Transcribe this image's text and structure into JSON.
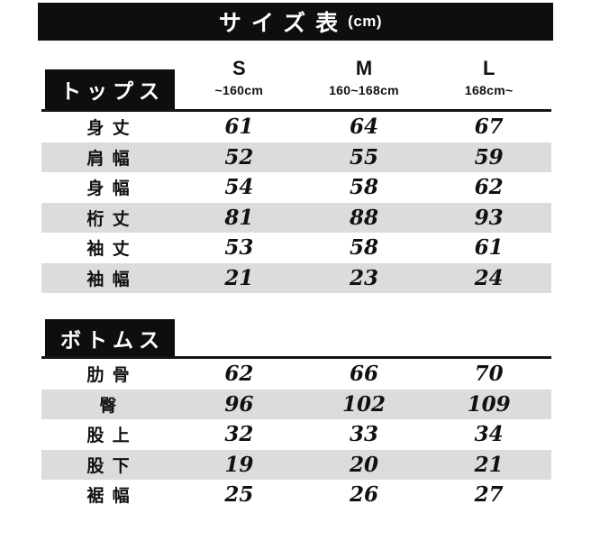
{
  "title": {
    "text": "サイズ表",
    "unit": "(cm)"
  },
  "columns": [
    {
      "size": "S",
      "range": "~160cm"
    },
    {
      "size": "M",
      "range": "160~168cm"
    },
    {
      "size": "L",
      "range": "168cm~"
    }
  ],
  "sections": [
    {
      "label": "トップス",
      "rows": [
        {
          "label": "身 丈",
          "values": [
            "61",
            "64",
            "67"
          ]
        },
        {
          "label": "肩 幅",
          "values": [
            "52",
            "55",
            "59"
          ]
        },
        {
          "label": "身 幅",
          "values": [
            "54",
            "58",
            "62"
          ]
        },
        {
          "label": "桁 丈",
          "values": [
            "81",
            "88",
            "93"
          ]
        },
        {
          "label": "袖 丈",
          "values": [
            "53",
            "58",
            "61"
          ]
        },
        {
          "label": "袖 幅",
          "values": [
            "21",
            "23",
            "24"
          ]
        }
      ]
    },
    {
      "label": "ボトムス",
      "rows": [
        {
          "label": "肋 骨",
          "values": [
            "62",
            "66",
            "70"
          ]
        },
        {
          "label": "臀",
          "values": [
            "96",
            "102",
            "109"
          ]
        },
        {
          "label": "股 上",
          "values": [
            "32",
            "33",
            "34"
          ]
        },
        {
          "label": "股 下",
          "values": [
            "19",
            "20",
            "21"
          ]
        },
        {
          "label": "裾 幅",
          "values": [
            "25",
            "26",
            "27"
          ]
        }
      ]
    }
  ],
  "colors": {
    "bar_black": "#0e0e0e",
    "row_alt_gray": "#dcdcdc",
    "text_black": "#111111"
  },
  "chart_data": {
    "type": "table",
    "title": "サイズ表 (cm)",
    "categories": [
      "S (~160cm)",
      "M (160~168cm)",
      "L (168cm~)"
    ],
    "sections": [
      {
        "name": "トップス",
        "series": [
          {
            "name": "身丈",
            "values": [
              61,
              64,
              67
            ]
          },
          {
            "name": "肩幅",
            "values": [
              52,
              55,
              59
            ]
          },
          {
            "name": "身幅",
            "values": [
              54,
              58,
              62
            ]
          },
          {
            "name": "桁丈",
            "values": [
              81,
              88,
              93
            ]
          },
          {
            "name": "袖丈",
            "values": [
              53,
              58,
              61
            ]
          },
          {
            "name": "袖幅",
            "values": [
              21,
              23,
              24
            ]
          }
        ]
      },
      {
        "name": "ボトムス",
        "series": [
          {
            "name": "肋骨",
            "values": [
              62,
              66,
              70
            ]
          },
          {
            "name": "臀",
            "values": [
              96,
              102,
              109
            ]
          },
          {
            "name": "股上",
            "values": [
              32,
              33,
              34
            ]
          },
          {
            "name": "股下",
            "values": [
              19,
              20,
              21
            ]
          },
          {
            "name": "裾幅",
            "values": [
              25,
              26,
              27
            ]
          }
        ]
      }
    ]
  }
}
